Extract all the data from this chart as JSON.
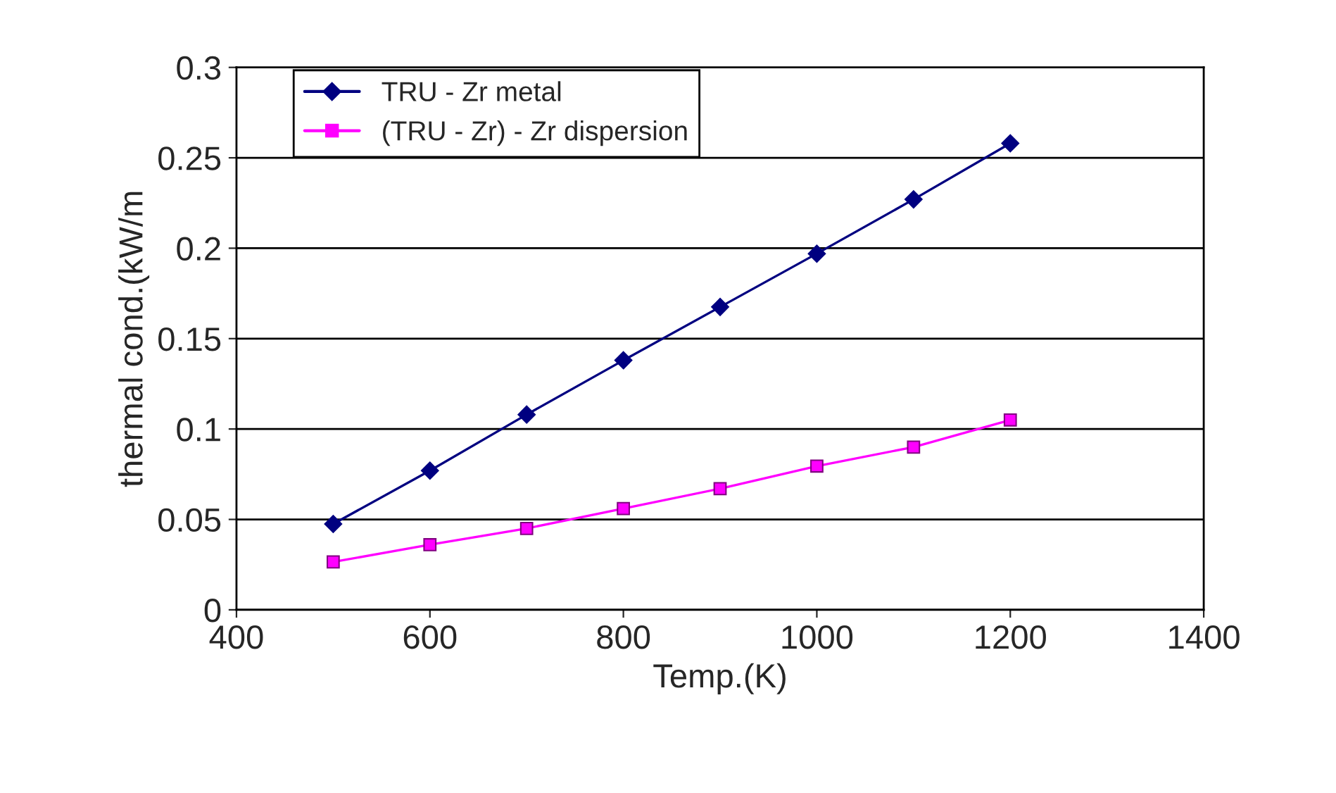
{
  "chart_data": {
    "type": "line",
    "xlabel": "Temp.(K)",
    "ylabel": "thermal cond.(kW/m",
    "x": [
      500,
      600,
      700,
      800,
      900,
      1000,
      1100,
      1200
    ],
    "series": [
      {
        "name": "TRU - Zr metal",
        "color": "#000080",
        "marker": "diamond",
        "values": [
          0.0475,
          0.077,
          0.108,
          0.138,
          0.1675,
          0.197,
          0.227,
          0.258
        ]
      },
      {
        "name": "(TRU - Zr) - Zr dispersion",
        "color": "#ff00ff",
        "marker": "square",
        "values": [
          0.0265,
          0.036,
          0.045,
          0.056,
          0.067,
          0.0795,
          0.09,
          0.105
        ]
      }
    ],
    "xlim": [
      400,
      1400
    ],
    "xticks": [
      400,
      600,
      800,
      1000,
      1200,
      1400
    ],
    "ylim": [
      0,
      0.3
    ],
    "yticks": [
      0,
      0.05,
      0.1,
      0.15,
      0.2,
      0.25,
      0.3
    ],
    "grid": "y",
    "legend": "top left",
    "line_style": "solid"
  }
}
